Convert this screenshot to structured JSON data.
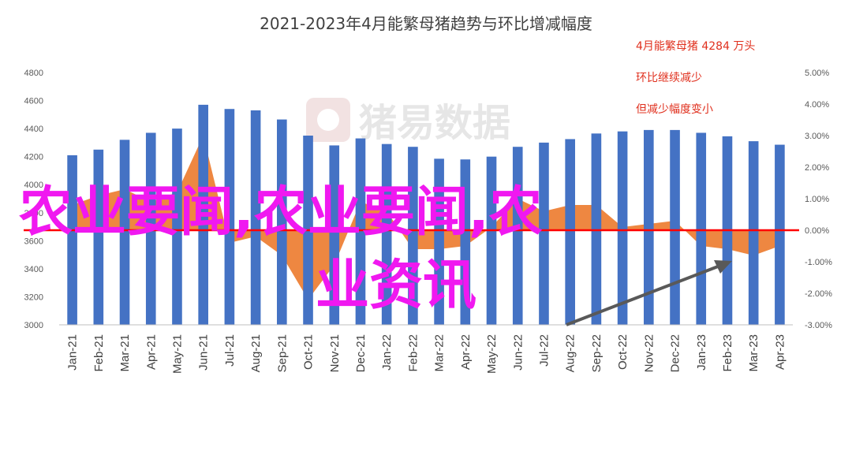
{
  "chart_data": {
    "type": "bar",
    "title": "2021-2023年4月能繁母猪趋势与环比增减幅度",
    "categories": [
      "Jan-21",
      "Feb-21",
      "Mar-21",
      "Apr-21",
      "May-21",
      "Jun-21",
      "Jul-21",
      "Aug-21",
      "Sep-21",
      "Oct-21",
      "Nov-21",
      "Dec-21",
      "Jan-22",
      "Feb-22",
      "Mar-22",
      "Apr-22",
      "May-22",
      "Jun-22",
      "Jul-22",
      "Aug-22",
      "Sep-22",
      "Oct-22",
      "Nov-22",
      "Dec-22",
      "Jan-23",
      "Feb-23",
      "Mar-23",
      "Apr-23"
    ],
    "series": [
      {
        "axis": "left",
        "type": "bar",
        "color": "#4472c4",
        "values": [
          4210,
          4250,
          4320,
          4370,
          4400,
          4570,
          4540,
          4530,
          4465,
          4350,
          4280,
          4330,
          4290,
          4270,
          4185,
          4180,
          4200,
          4270,
          4300,
          4325,
          4365,
          4380,
          4390,
          4390,
          4370,
          4345,
          4310,
          4285
        ]
      },
      {
        "axis": "right",
        "type": "area",
        "color": "#ed7d31",
        "values": [
          0.8,
          1.1,
          1.3,
          0.9,
          1.2,
          3.0,
          -0.4,
          -0.2,
          -0.8,
          -2.2,
          -1.1,
          0.9,
          0.6,
          -0.6,
          -0.6,
          -0.5,
          0.1,
          1.0,
          0.6,
          0.8,
          0.8,
          0.1,
          0.2,
          0.3,
          -0.5,
          -0.6,
          -0.8,
          -0.5
        ]
      }
    ],
    "yleft": {
      "min": 3000,
      "max": 4800,
      "step": 200,
      "ticks": [
        "3000",
        "3200",
        "3400",
        "3600",
        "3800",
        "4000",
        "4200",
        "4400",
        "4600",
        "4800"
      ]
    },
    "yright": {
      "min": -3,
      "max": 5,
      "step": 1,
      "ticks": [
        "-3.00%",
        "-2.00%",
        "-1.00%",
        "0.00%",
        "1.00%",
        "2.00%",
        "3.00%",
        "4.00%",
        "5.00%"
      ]
    },
    "zero_line_color": "#ff0000",
    "annotations": [
      "4月能繁母猪 4284 万头",
      "环比继续减少",
      "但减少幅度变小"
    ],
    "watermark": "猪易数据",
    "overlay_text": [
      "农业要闻,农业要闻,农",
      "业资讯"
    ]
  }
}
